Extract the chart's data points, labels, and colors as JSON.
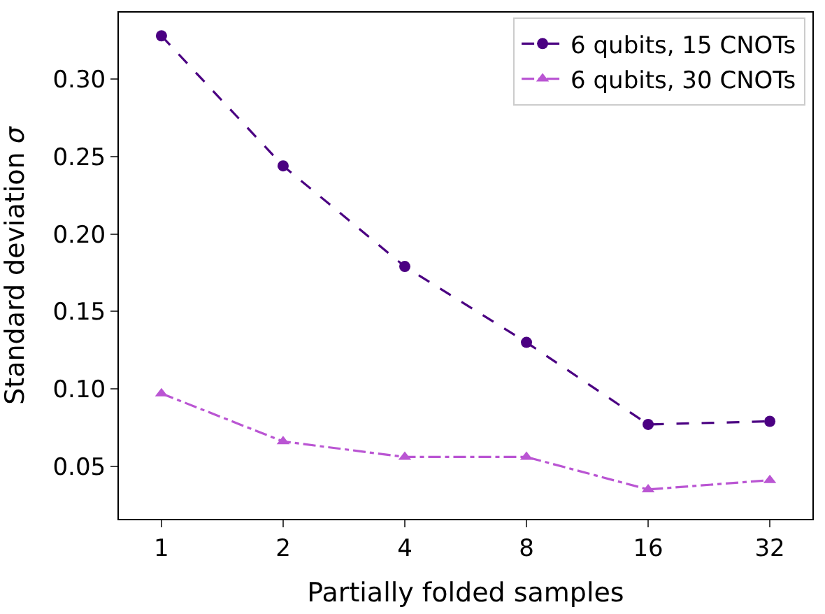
{
  "chart_data": {
    "type": "line",
    "xlabel": "Partially folded samples",
    "ylabel": "Standard deviation σ",
    "categories": [
      "1",
      "2",
      "4",
      "8",
      "16",
      "32"
    ],
    "series": [
      {
        "name": "6 qubits, 15 CNOTs",
        "color": "#4b0082",
        "marker": "circle",
        "line_style": "dashed",
        "values": [
          0.328,
          0.244,
          0.179,
          0.13,
          0.077,
          0.079
        ]
      },
      {
        "name": "6 qubits, 30 CNOTs",
        "color": "#ba55d3",
        "marker": "triangle",
        "line_style": "dashdot",
        "values": [
          0.097,
          0.066,
          0.056,
          0.056,
          0.035,
          0.041
        ]
      }
    ],
    "ylim": [
      0.016,
      0.343
    ],
    "yticks": [
      0.05,
      {
        "value": 0.1,
        "label": "0.10"
      },
      0.15,
      {
        "value": 0.2,
        "label": "0.20"
      },
      0.25,
      {
        "value": 0.3,
        "label": "0.30"
      }
    ],
    "legend": "top right"
  }
}
